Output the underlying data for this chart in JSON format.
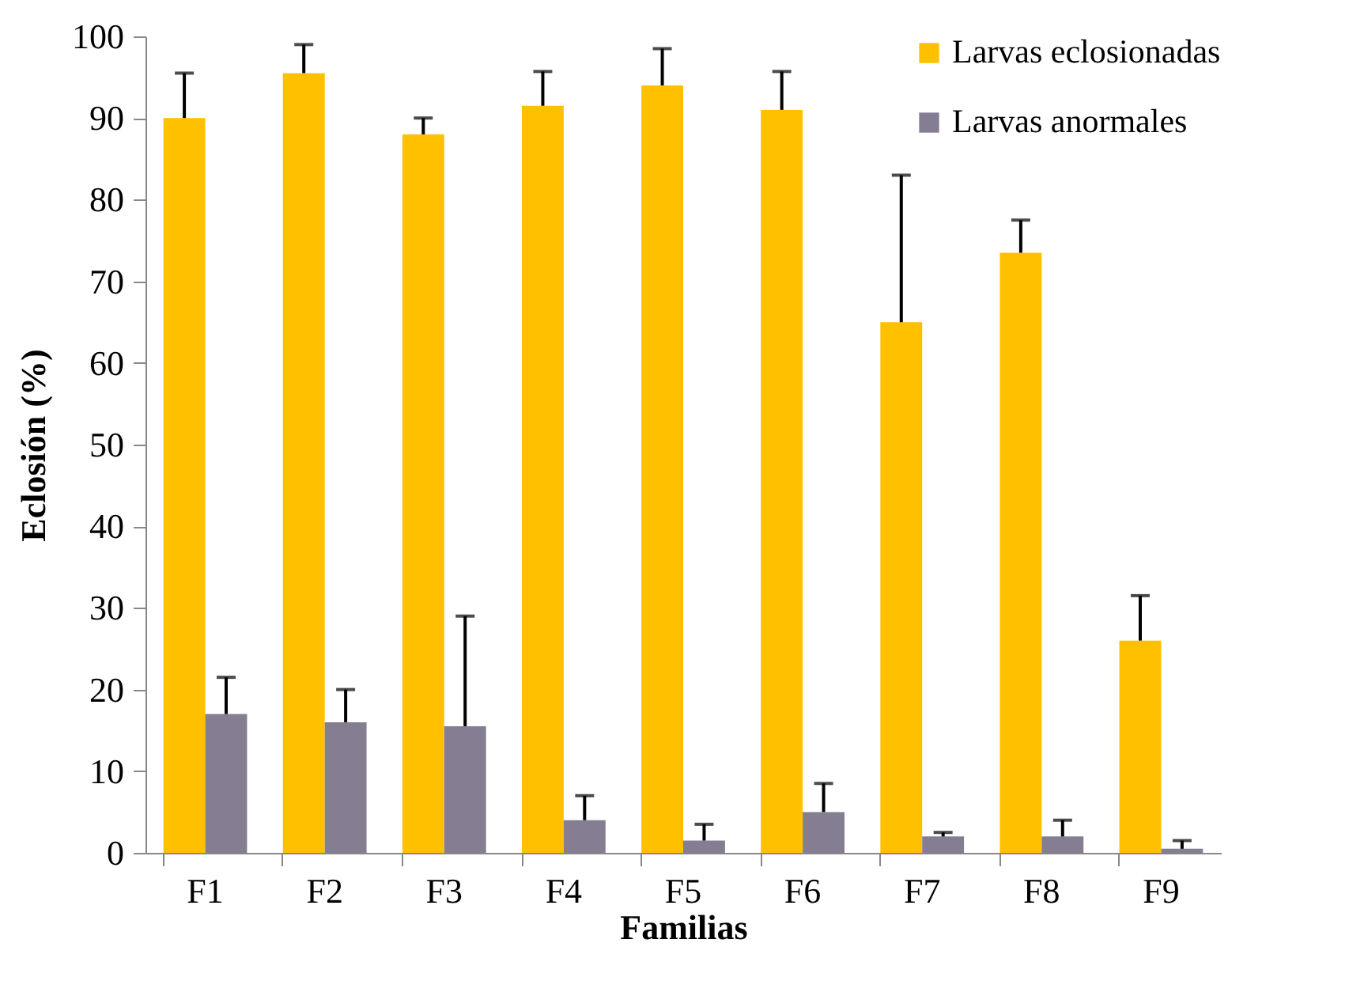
{
  "chart_data": {
    "type": "bar",
    "xlabel": "Familias",
    "ylabel": "Eclosión (%)",
    "categories": [
      "F1",
      "F2",
      "F3",
      "F4",
      "F5",
      "F6",
      "F7",
      "F8",
      "F9"
    ],
    "series": [
      {
        "name": "Larvas eclosionadas",
        "color": "#ffc000",
        "values": [
          90,
          95.5,
          88,
          91.5,
          94,
          91,
          65,
          73.5,
          26
        ],
        "errors": [
          [
            90,
            95.5
          ],
          [
            95.5,
            99
          ],
          [
            88,
            90
          ],
          [
            91.5,
            95.7
          ],
          [
            94,
            98.5
          ],
          [
            91,
            95.7
          ],
          [
            65,
            83
          ],
          [
            73.5,
            77.5
          ],
          [
            26,
            31.5
          ]
        ]
      },
      {
        "name": "Larvas anormales",
        "color": "#857d92",
        "values": [
          17,
          16,
          15.5,
          4,
          1.5,
          5,
          2,
          2,
          0.5
        ],
        "errors": [
          [
            17,
            21.5
          ],
          [
            16,
            20
          ],
          [
            15.5,
            29
          ],
          [
            4,
            7
          ],
          [
            1.5,
            3.5
          ],
          [
            5,
            8.5
          ],
          [
            2,
            2.5
          ],
          [
            2,
            4
          ],
          [
            0.5,
            1.5
          ]
        ]
      }
    ],
    "ylim": [
      0,
      100
    ],
    "yticks": [
      0,
      10,
      20,
      30,
      40,
      50,
      60,
      70,
      80,
      90,
      100
    ],
    "grid": false,
    "legend": "top right"
  }
}
